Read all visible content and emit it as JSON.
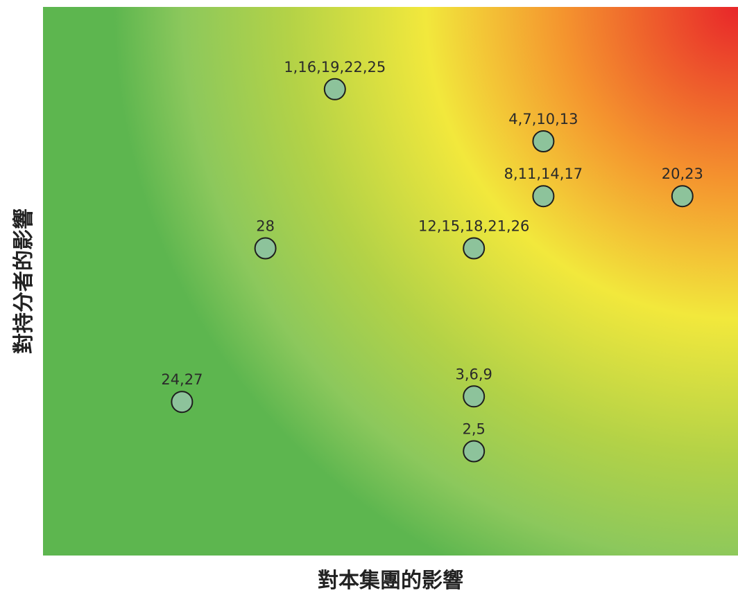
{
  "chart_data": {
    "type": "scatter",
    "xlabel": "對本集團的影響",
    "ylabel": "對持分者的影響",
    "xlim": [
      0,
      10
    ],
    "ylim": [
      0,
      10
    ],
    "grid": false,
    "legend": "none",
    "background": {
      "style": "radial-heatmap",
      "hot_corner": "top-right",
      "colors": [
        "#e8262a",
        "#f4932e",
        "#f2e83c",
        "#b3d247",
        "#8cc85c",
        "#5db64f"
      ]
    },
    "marker_color": "#8dc39b",
    "points": [
      {
        "label": "1,16,19,22,25",
        "x": 4.2,
        "y": 8.5
      },
      {
        "label": "4,7,10,13",
        "x": 7.2,
        "y": 7.55
      },
      {
        "label": "8,11,14,17",
        "x": 7.2,
        "y": 6.55
      },
      {
        "label": "20,23",
        "x": 9.2,
        "y": 6.55
      },
      {
        "label": "28",
        "x": 3.2,
        "y": 5.6
      },
      {
        "label": "12,15,18,21,26",
        "x": 6.2,
        "y": 5.6
      },
      {
        "label": "24,27",
        "x": 2.0,
        "y": 2.8
      },
      {
        "label": "3,6,9",
        "x": 6.2,
        "y": 2.9
      },
      {
        "label": "2,5",
        "x": 6.2,
        "y": 1.9
      }
    ]
  }
}
